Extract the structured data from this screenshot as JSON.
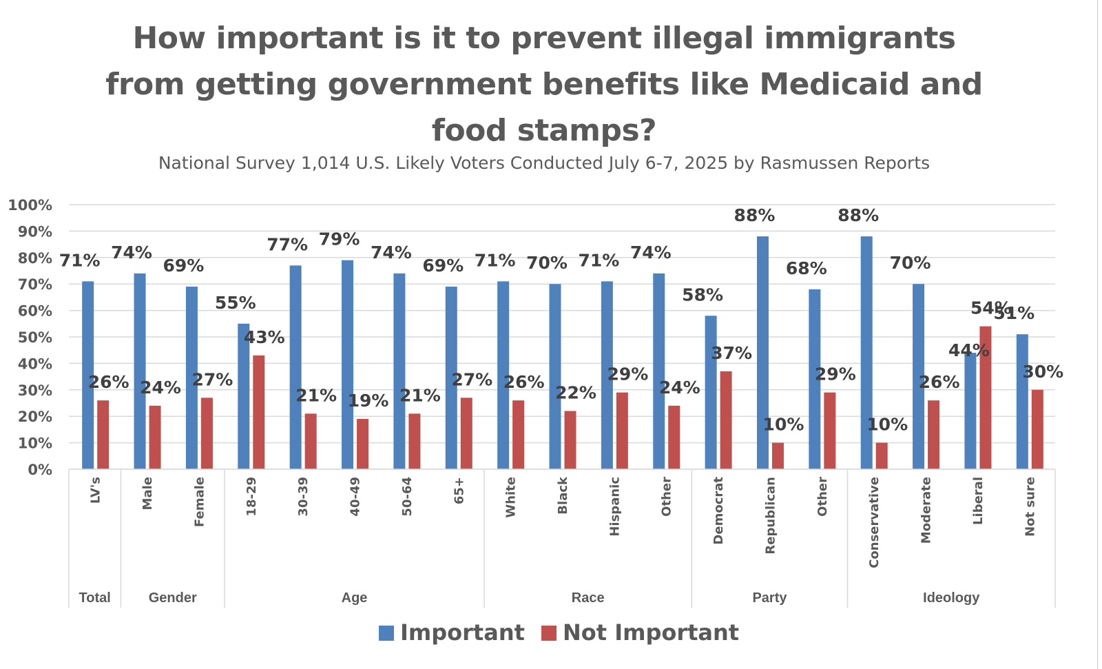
{
  "chart_data": {
    "type": "bar",
    "title": "How important is it to prevent illegal immigrants from getting government benefits like Medicaid and food stamps?",
    "subtitle": "National Survey 1,014 U.S. Likely Voters Conducted July 6-7, 2025 by Rasmussen Reports",
    "xlabel": "",
    "ylabel": "",
    "ylim": [
      0,
      100
    ],
    "yticks": [
      "0%",
      "10%",
      "20%",
      "30%",
      "40%",
      "50%",
      "60%",
      "70%",
      "80%",
      "90%",
      "100%"
    ],
    "grid": true,
    "legend_position": "bottom",
    "categories": [
      "LV's",
      "Male",
      "Female",
      "18-29",
      "30-39",
      "40-49",
      "50-64",
      "65+",
      "White",
      "Black",
      "Hispanic",
      "Other",
      "Democrat",
      "Republican",
      "Other",
      "Conservative",
      "Moderate",
      "Liberal",
      "Not sure"
    ],
    "groups": [
      {
        "name": "Total",
        "count": 1
      },
      {
        "name": "Gender",
        "count": 2
      },
      {
        "name": "Age",
        "count": 5
      },
      {
        "name": "Race",
        "count": 4
      },
      {
        "name": "Party",
        "count": 3
      },
      {
        "name": "Ideology",
        "count": 4
      }
    ],
    "series": [
      {
        "name": "Important",
        "color": "#4F81BD",
        "values": [
          71,
          74,
          69,
          55,
          77,
          79,
          74,
          69,
          71,
          70,
          71,
          74,
          58,
          88,
          68,
          88,
          70,
          44,
          51
        ]
      },
      {
        "name": "Not Important",
        "color": "#C0504D",
        "values": [
          26,
          24,
          27,
          43,
          21,
          19,
          21,
          27,
          26,
          22,
          29,
          24,
          37,
          10,
          29,
          10,
          26,
          54,
          30
        ]
      }
    ]
  },
  "colors": {
    "grid": "#D9D9D9",
    "axis": "#D9D9D9",
    "text": "#595959",
    "label": "#404040"
  }
}
